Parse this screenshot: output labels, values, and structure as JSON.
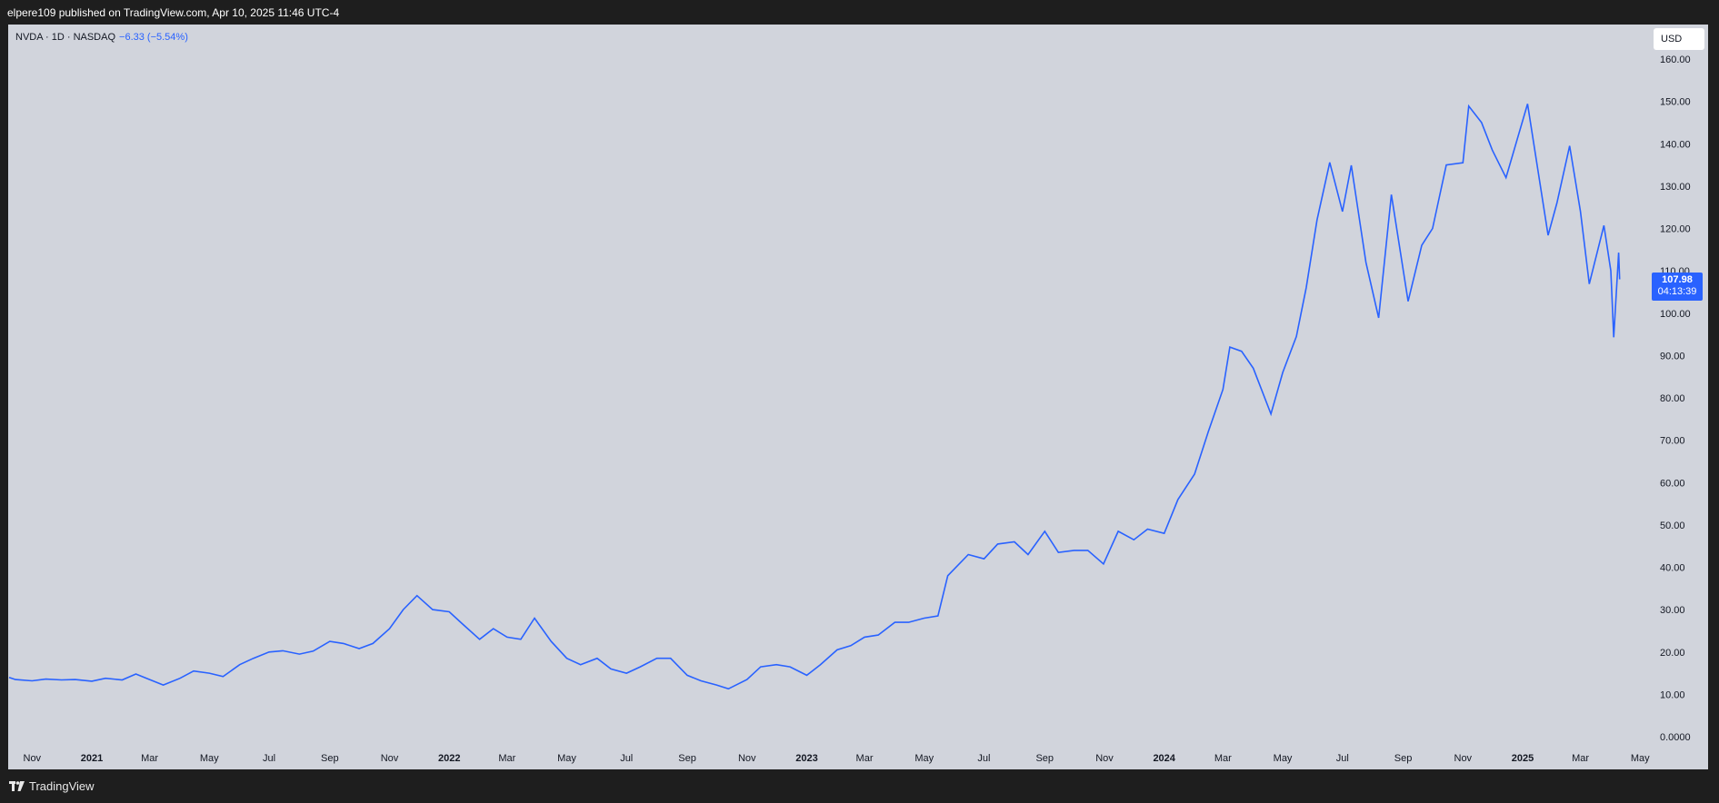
{
  "header": {
    "published_text": "elpere109 published on TradingView.com, Apr 10, 2025 11:46 UTC-4"
  },
  "legend": {
    "symbol": "NVDA · 1D · NASDAQ",
    "change": "−6.33 (−5.54%)"
  },
  "currency_button": "USD",
  "last_price": {
    "price": "107.98",
    "countdown": "04:13:39"
  },
  "footer": {
    "brand": "TradingView"
  },
  "colors": {
    "line": "#2962ff",
    "background": "#d1d4dc",
    "frame": "#1e1e1e"
  },
  "chart_data": {
    "type": "line",
    "title": "",
    "xlabel": "",
    "ylabel": "",
    "ylim": [
      0,
      160
    ],
    "grid": false,
    "y_ticks": [
      "160.00",
      "150.00",
      "140.00",
      "130.00",
      "120.00",
      "110.00",
      "100.00",
      "90.00",
      "80.00",
      "70.00",
      "60.00",
      "50.00",
      "40.00",
      "30.00",
      "20.00",
      "10.00",
      "0.0000"
    ],
    "x_ticks": [
      {
        "label": "Nov",
        "x": "2020-11-01",
        "bold": false
      },
      {
        "label": "2021",
        "x": "2021-01-01",
        "bold": true
      },
      {
        "label": "Mar",
        "x": "2021-03-01",
        "bold": false
      },
      {
        "label": "May",
        "x": "2021-05-01",
        "bold": false
      },
      {
        "label": "Jul",
        "x": "2021-07-01",
        "bold": false
      },
      {
        "label": "Sep",
        "x": "2021-09-01",
        "bold": false
      },
      {
        "label": "Nov",
        "x": "2021-11-01",
        "bold": false
      },
      {
        "label": "2022",
        "x": "2022-01-01",
        "bold": true
      },
      {
        "label": "Mar",
        "x": "2022-03-01",
        "bold": false
      },
      {
        "label": "May",
        "x": "2022-05-01",
        "bold": false
      },
      {
        "label": "Jul",
        "x": "2022-07-01",
        "bold": false
      },
      {
        "label": "Sep",
        "x": "2022-09-01",
        "bold": false
      },
      {
        "label": "Nov",
        "x": "2022-11-01",
        "bold": false
      },
      {
        "label": "2023",
        "x": "2023-01-01",
        "bold": true
      },
      {
        "label": "Mar",
        "x": "2023-03-01",
        "bold": false
      },
      {
        "label": "May",
        "x": "2023-05-01",
        "bold": false
      },
      {
        "label": "Jul",
        "x": "2023-07-01",
        "bold": false
      },
      {
        "label": "Sep",
        "x": "2023-09-01",
        "bold": false
      },
      {
        "label": "Nov",
        "x": "2023-11-01",
        "bold": false
      },
      {
        "label": "2024",
        "x": "2024-01-01",
        "bold": true
      },
      {
        "label": "Mar",
        "x": "2024-03-01",
        "bold": false
      },
      {
        "label": "May",
        "x": "2024-05-01",
        "bold": false
      },
      {
        "label": "Jul",
        "x": "2024-07-01",
        "bold": false
      },
      {
        "label": "Sep",
        "x": "2024-09-01",
        "bold": false
      },
      {
        "label": "Nov",
        "x": "2024-11-01",
        "bold": false
      },
      {
        "label": "2025",
        "x": "2025-01-01",
        "bold": true
      },
      {
        "label": "Mar",
        "x": "2025-03-01",
        "bold": false
      },
      {
        "label": "May",
        "x": "2025-05-01",
        "bold": false
      }
    ],
    "series": [
      {
        "points": [
          [
            "2020-10-01",
            14.0
          ],
          [
            "2020-10-15",
            13.5
          ],
          [
            "2020-11-01",
            13.2
          ],
          [
            "2020-11-15",
            13.6
          ],
          [
            "2020-12-01",
            13.4
          ],
          [
            "2020-12-15",
            13.5
          ],
          [
            "2021-01-01",
            13.1
          ],
          [
            "2021-01-15",
            13.8
          ],
          [
            "2021-02-01",
            13.4
          ],
          [
            "2021-02-15",
            14.8
          ],
          [
            "2021-03-01",
            13.5
          ],
          [
            "2021-03-15",
            12.2
          ],
          [
            "2021-04-01",
            13.8
          ],
          [
            "2021-04-15",
            15.5
          ],
          [
            "2021-05-01",
            15.0
          ],
          [
            "2021-05-15",
            14.2
          ],
          [
            "2021-06-01",
            17.0
          ],
          [
            "2021-06-15",
            18.5
          ],
          [
            "2021-07-01",
            20.0
          ],
          [
            "2021-07-15",
            20.3
          ],
          [
            "2021-08-01",
            19.5
          ],
          [
            "2021-08-15",
            20.2
          ],
          [
            "2021-09-01",
            22.5
          ],
          [
            "2021-09-15",
            22.0
          ],
          [
            "2021-10-01",
            20.8
          ],
          [
            "2021-10-15",
            22.0
          ],
          [
            "2021-11-01",
            25.5
          ],
          [
            "2021-11-15",
            30.0
          ],
          [
            "2021-11-29",
            33.3
          ],
          [
            "2021-12-15",
            30.0
          ],
          [
            "2022-01-01",
            29.5
          ],
          [
            "2022-01-15",
            26.5
          ],
          [
            "2022-02-01",
            23.0
          ],
          [
            "2022-02-15",
            25.5
          ],
          [
            "2022-03-01",
            23.5
          ],
          [
            "2022-03-15",
            23.0
          ],
          [
            "2022-03-29",
            28.0
          ],
          [
            "2022-04-15",
            22.5
          ],
          [
            "2022-05-01",
            18.5
          ],
          [
            "2022-05-15",
            17.0
          ],
          [
            "2022-06-01",
            18.5
          ],
          [
            "2022-06-15",
            16.0
          ],
          [
            "2022-07-01",
            15.0
          ],
          [
            "2022-07-15",
            16.5
          ],
          [
            "2022-08-01",
            18.5
          ],
          [
            "2022-08-15",
            18.5
          ],
          [
            "2022-09-01",
            14.5
          ],
          [
            "2022-09-15",
            13.2
          ],
          [
            "2022-10-01",
            12.2
          ],
          [
            "2022-10-13",
            11.3
          ],
          [
            "2022-11-01",
            13.5
          ],
          [
            "2022-11-15",
            16.5
          ],
          [
            "2022-12-01",
            17.0
          ],
          [
            "2022-12-15",
            16.5
          ],
          [
            "2023-01-01",
            14.5
          ],
          [
            "2023-01-15",
            17.0
          ],
          [
            "2023-02-01",
            20.5
          ],
          [
            "2023-02-15",
            21.5
          ],
          [
            "2023-03-01",
            23.5
          ],
          [
            "2023-03-15",
            24.0
          ],
          [
            "2023-04-01",
            27.0
          ],
          [
            "2023-04-15",
            27.0
          ],
          [
            "2023-05-01",
            28.0
          ],
          [
            "2023-05-15",
            28.5
          ],
          [
            "2023-05-25",
            38.0
          ],
          [
            "2023-06-15",
            43.0
          ],
          [
            "2023-07-01",
            42.0
          ],
          [
            "2023-07-15",
            45.5
          ],
          [
            "2023-08-01",
            46.0
          ],
          [
            "2023-08-15",
            43.0
          ],
          [
            "2023-09-01",
            48.5
          ],
          [
            "2023-09-15",
            43.5
          ],
          [
            "2023-10-01",
            44.0
          ],
          [
            "2023-10-15",
            44.0
          ],
          [
            "2023-10-31",
            40.8
          ],
          [
            "2023-11-15",
            48.5
          ],
          [
            "2023-12-01",
            46.5
          ],
          [
            "2023-12-15",
            49.0
          ],
          [
            "2024-01-01",
            48.0
          ],
          [
            "2024-01-15",
            56.0
          ],
          [
            "2024-02-01",
            62.0
          ],
          [
            "2024-02-15",
            72.0
          ],
          [
            "2024-03-01",
            82.0
          ],
          [
            "2024-03-08",
            92.0
          ],
          [
            "2024-03-20",
            91.0
          ],
          [
            "2024-04-01",
            87.0
          ],
          [
            "2024-04-19",
            76.2
          ],
          [
            "2024-05-01",
            86.0
          ],
          [
            "2024-05-15",
            94.5
          ],
          [
            "2024-05-25",
            106.0
          ],
          [
            "2024-06-05",
            122.0
          ],
          [
            "2024-06-18",
            135.6
          ],
          [
            "2024-07-01",
            124.0
          ],
          [
            "2024-07-10",
            134.9
          ],
          [
            "2024-07-25",
            112.0
          ],
          [
            "2024-08-07",
            98.9
          ],
          [
            "2024-08-20",
            128.0
          ],
          [
            "2024-09-06",
            102.8
          ],
          [
            "2024-09-20",
            116.0
          ],
          [
            "2024-10-01",
            120.0
          ],
          [
            "2024-10-15",
            135.0
          ],
          [
            "2024-11-01",
            135.5
          ],
          [
            "2024-11-07",
            148.9
          ],
          [
            "2024-11-20",
            145.0
          ],
          [
            "2024-12-01",
            138.5
          ],
          [
            "2024-12-15",
            132.0
          ],
          [
            "2025-01-06",
            149.4
          ],
          [
            "2025-01-27",
            118.4
          ],
          [
            "2025-02-05",
            126.0
          ],
          [
            "2025-02-18",
            139.5
          ],
          [
            "2025-03-01",
            124.0
          ],
          [
            "2025-03-10",
            106.9
          ],
          [
            "2025-03-25",
            120.7
          ],
          [
            "2025-04-01",
            110.0
          ],
          [
            "2025-04-04",
            94.3
          ],
          [
            "2025-04-09",
            114.3
          ],
          [
            "2025-04-10",
            107.98
          ]
        ]
      }
    ]
  }
}
